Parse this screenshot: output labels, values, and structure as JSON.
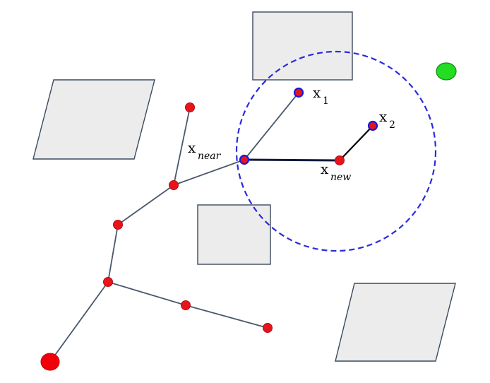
{
  "labels": {
    "x_near": {
      "main": "x",
      "sub": "near"
    },
    "x_new": {
      "main": "x",
      "sub": "new"
    },
    "x_1": {
      "main": "x",
      "sub": "1"
    },
    "x_2": {
      "main": "x",
      "sub": "2"
    }
  },
  "colors": {
    "obstacle_fill": "#ececec",
    "obstacle_stroke": "#3b4a5e",
    "node": "#e8141c",
    "node_outline_blue": "#1a1ad8",
    "goal": "#22dd22",
    "radius_circle": "#2a2ae0",
    "tree_edge": "#4a586c",
    "new_edge": "#111a3e"
  }
}
